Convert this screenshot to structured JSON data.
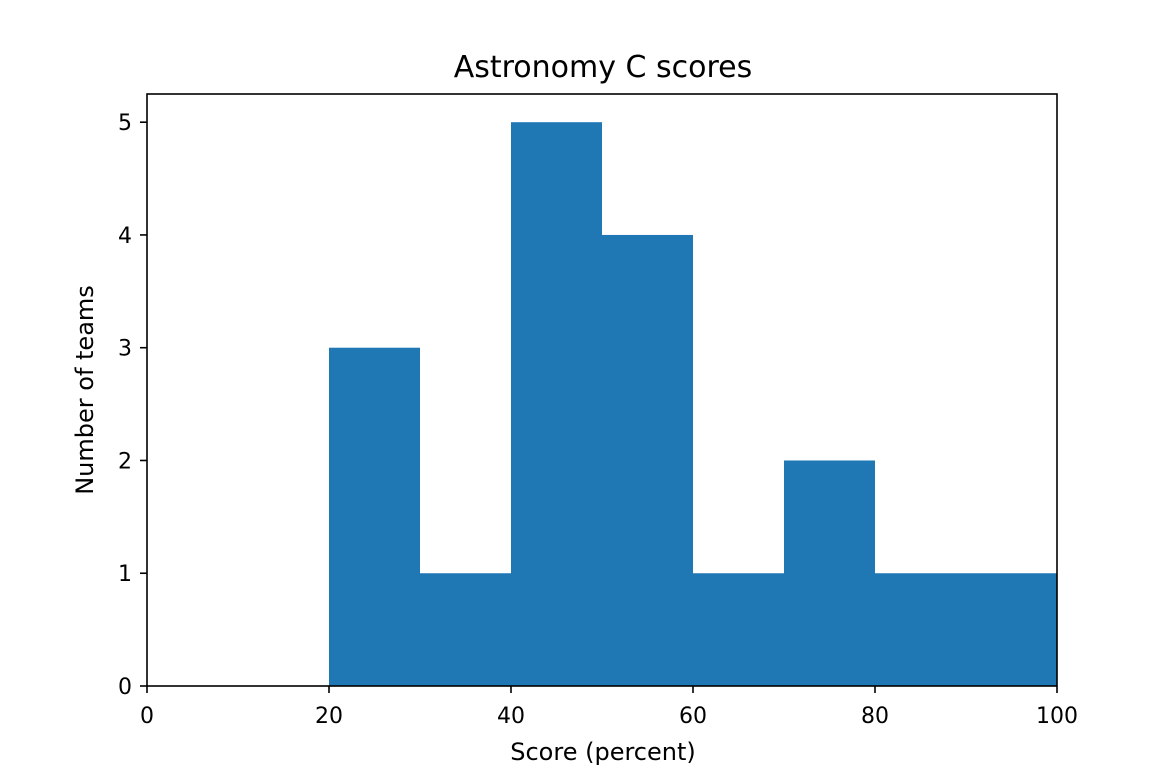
{
  "chart_data": {
    "type": "bar",
    "title": "Astronomy C scores",
    "xlabel": "Score (percent)",
    "ylabel": "Number of teams",
    "bins": [
      {
        "start": 20,
        "end": 30,
        "count": 3
      },
      {
        "start": 30,
        "end": 40,
        "count": 1
      },
      {
        "start": 40,
        "end": 50,
        "count": 5
      },
      {
        "start": 50,
        "end": 60,
        "count": 4
      },
      {
        "start": 60,
        "end": 70,
        "count": 1
      },
      {
        "start": 70,
        "end": 80,
        "count": 2
      },
      {
        "start": 80,
        "end": 90,
        "count": 1
      },
      {
        "start": 90,
        "end": 100,
        "count": 1
      }
    ],
    "xlim": [
      0,
      100
    ],
    "ylim": [
      0,
      5.25
    ],
    "xticks": [
      0,
      20,
      40,
      60,
      80,
      100
    ],
    "yticks": [
      0,
      1,
      2,
      3,
      4,
      5
    ],
    "bar_color": "#1f77b4",
    "grid": false
  }
}
